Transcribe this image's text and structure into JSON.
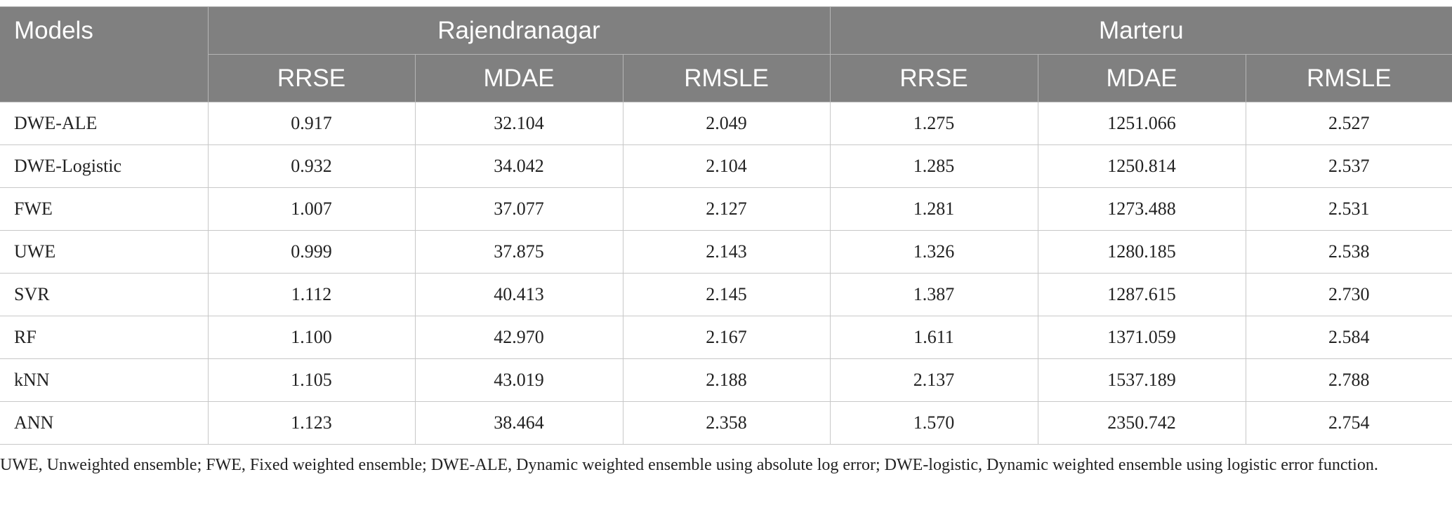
{
  "table": {
    "header": {
      "models_label": "Models",
      "groups": [
        "Rajendranagar",
        "Marteru"
      ],
      "metrics": [
        "RRSE",
        "MDAE",
        "RMSLE",
        "RRSE",
        "MDAE",
        "RMSLE"
      ]
    },
    "rows": [
      {
        "model": "DWE-ALE",
        "values": [
          "0.917",
          "32.104",
          "2.049",
          "1.275",
          "1251.066",
          "2.527"
        ]
      },
      {
        "model": "DWE-Logistic",
        "values": [
          "0.932",
          "34.042",
          "2.104",
          "1.285",
          "1250.814",
          "2.537"
        ]
      },
      {
        "model": "FWE",
        "values": [
          "1.007",
          "37.077",
          "2.127",
          "1.281",
          "1273.488",
          "2.531"
        ]
      },
      {
        "model": "UWE",
        "values": [
          "0.999",
          "37.875",
          "2.143",
          "1.326",
          "1280.185",
          "2.538"
        ]
      },
      {
        "model": "SVR",
        "values": [
          "1.112",
          "40.413",
          "2.145",
          "1.387",
          "1287.615",
          "2.730"
        ]
      },
      {
        "model": "RF",
        "values": [
          "1.100",
          "42.970",
          "2.167",
          "1.611",
          "1371.059",
          "2.584"
        ]
      },
      {
        "model": "kNN",
        "values": [
          "1.105",
          "43.019",
          "2.188",
          "2.137",
          "1537.189",
          "2.788"
        ]
      },
      {
        "model": "ANN",
        "values": [
          "1.123",
          "38.464",
          "2.358",
          "1.570",
          "2350.742",
          "2.754"
        ]
      }
    ]
  },
  "footnote": "UWE, Unweighted ensemble; FWE, Fixed weighted ensemble; DWE-ALE, Dynamic weighted ensemble using absolute log error; DWE-logistic, Dynamic weighted ensemble using logistic error function.",
  "colors": {
    "header_bg": "#808080",
    "header_text": "#ffffff",
    "grid_line": "#c8c8c8"
  }
}
